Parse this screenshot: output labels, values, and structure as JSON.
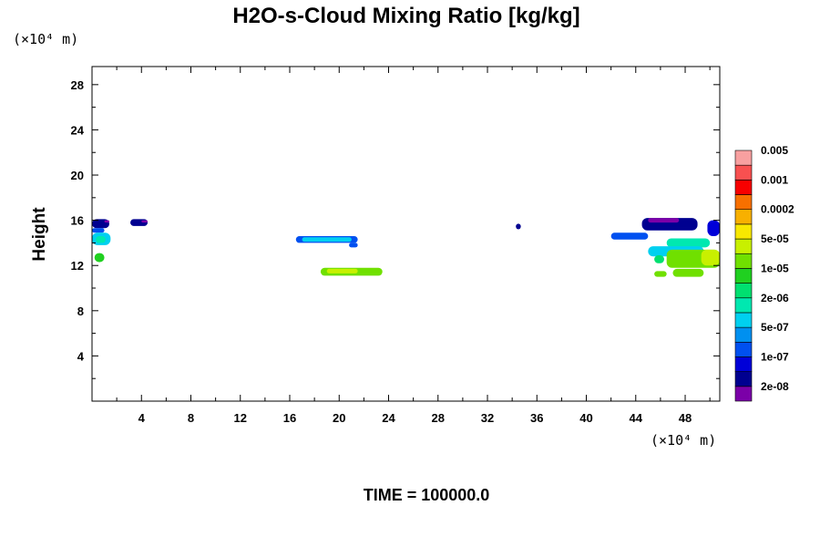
{
  "chart_data": {
    "type": "heatmap",
    "title": "H2O-s-Cloud Mixing Ratio [kg/kg]",
    "ylabel": "Height",
    "x_unit": "(×10⁴ m)",
    "y_unit": "(×10⁴ m)",
    "footer": "TIME = 100000.0",
    "xlim": [
      0,
      50.8
    ],
    "ylim": [
      0,
      29.6
    ],
    "x_ticks": [
      4,
      8,
      12,
      16,
      20,
      24,
      28,
      32,
      36,
      40,
      44,
      48
    ],
    "y_ticks": [
      4,
      8,
      12,
      16,
      20,
      24,
      28
    ],
    "x_tick_labels": [
      "4",
      "8",
      "12",
      "16",
      "20",
      "24",
      "28",
      "32",
      "36",
      "40",
      "44",
      "48"
    ],
    "y_tick_labels": [
      "4",
      "8",
      "12",
      "16",
      "20",
      "24",
      "28"
    ],
    "colorbar": {
      "colors": [
        "#7b00a8",
        "#000090",
        "#0000d8",
        "#0050f0",
        "#0090f0",
        "#00d0f0",
        "#00e8b0",
        "#00e070",
        "#20d020",
        "#70e000",
        "#c8f000",
        "#f8e800",
        "#f8b000",
        "#f87000",
        "#f80000",
        "#f85050",
        "#f8a0a0"
      ],
      "labels": [
        "2e-08",
        "1e-07",
        "5e-07",
        "2e-06",
        "1e-05",
        "5e-05",
        "0.0002",
        "0.001",
        "0.005"
      ]
    },
    "regions": [
      {
        "x": [
          0.0,
          1.4
        ],
        "y": [
          15.3,
          16.1
        ],
        "color": "#000090"
      },
      {
        "x": [
          0.0,
          1.0
        ],
        "y": [
          14.9,
          15.3
        ],
        "color": "#0050f0"
      },
      {
        "x": [
          1.0,
          1.4
        ],
        "y": [
          15.8,
          16.0
        ],
        "color": "#7b00a8"
      },
      {
        "x": [
          0.0,
          1.5
        ],
        "y": [
          13.8,
          14.9
        ],
        "color": "#00d0f0"
      },
      {
        "x": [
          0.3,
          1.1
        ],
        "y": [
          14.0,
          14.6
        ],
        "color": "#00e8b0"
      },
      {
        "x": [
          0.2,
          1.0
        ],
        "y": [
          12.3,
          13.1
        ],
        "color": "#20d020"
      },
      {
        "x": [
          3.1,
          4.5
        ],
        "y": [
          15.5,
          16.1
        ],
        "color": "#000090"
      },
      {
        "x": [
          4.0,
          4.5
        ],
        "y": [
          15.8,
          16.0
        ],
        "color": "#7b00a8"
      },
      {
        "x": [
          16.5,
          21.5
        ],
        "y": [
          14.0,
          14.6
        ],
        "color": "#0050f0"
      },
      {
        "x": [
          17.0,
          21.0
        ],
        "y": [
          14.1,
          14.5
        ],
        "color": "#00d0f0"
      },
      {
        "x": [
          20.8,
          21.5
        ],
        "y": [
          13.6,
          14.0
        ],
        "color": "#0050f0"
      },
      {
        "x": [
          18.5,
          23.5
        ],
        "y": [
          11.1,
          11.8
        ],
        "color": "#70e000"
      },
      {
        "x": [
          19.0,
          21.5
        ],
        "y": [
          11.3,
          11.7
        ],
        "color": "#c8f000"
      },
      {
        "x": [
          34.3,
          34.7
        ],
        "y": [
          15.2,
          15.7
        ],
        "color": "#000090"
      },
      {
        "x": [
          42.0,
          45.0
        ],
        "y": [
          14.3,
          14.9
        ],
        "color": "#0050f0"
      },
      {
        "x": [
          44.5,
          49.0
        ],
        "y": [
          15.1,
          16.2
        ],
        "color": "#000090"
      },
      {
        "x": [
          45.0,
          47.5
        ],
        "y": [
          15.8,
          16.2
        ],
        "color": "#7b00a8"
      },
      {
        "x": [
          49.8,
          50.8
        ],
        "y": [
          14.6,
          16.0
        ],
        "color": "#0000d8"
      },
      {
        "x": [
          46.5,
          50.0
        ],
        "y": [
          13.6,
          14.4
        ],
        "color": "#00e8b0"
      },
      {
        "x": [
          45.0,
          49.5
        ],
        "y": [
          12.8,
          13.7
        ],
        "color": "#00d0f0"
      },
      {
        "x": [
          46.5,
          50.8
        ],
        "y": [
          11.8,
          13.4
        ],
        "color": "#70e000"
      },
      {
        "x": [
          49.3,
          50.8
        ],
        "y": [
          12.0,
          13.4
        ],
        "color": "#c8f000"
      },
      {
        "x": [
          47.0,
          49.5
        ],
        "y": [
          11.0,
          11.7
        ],
        "color": "#70e000"
      },
      {
        "x": [
          45.5,
          46.5
        ],
        "y": [
          11.0,
          11.5
        ],
        "color": "#70e000"
      },
      {
        "x": [
          45.5,
          46.3
        ],
        "y": [
          12.2,
          12.9
        ],
        "color": "#00e070"
      }
    ]
  }
}
